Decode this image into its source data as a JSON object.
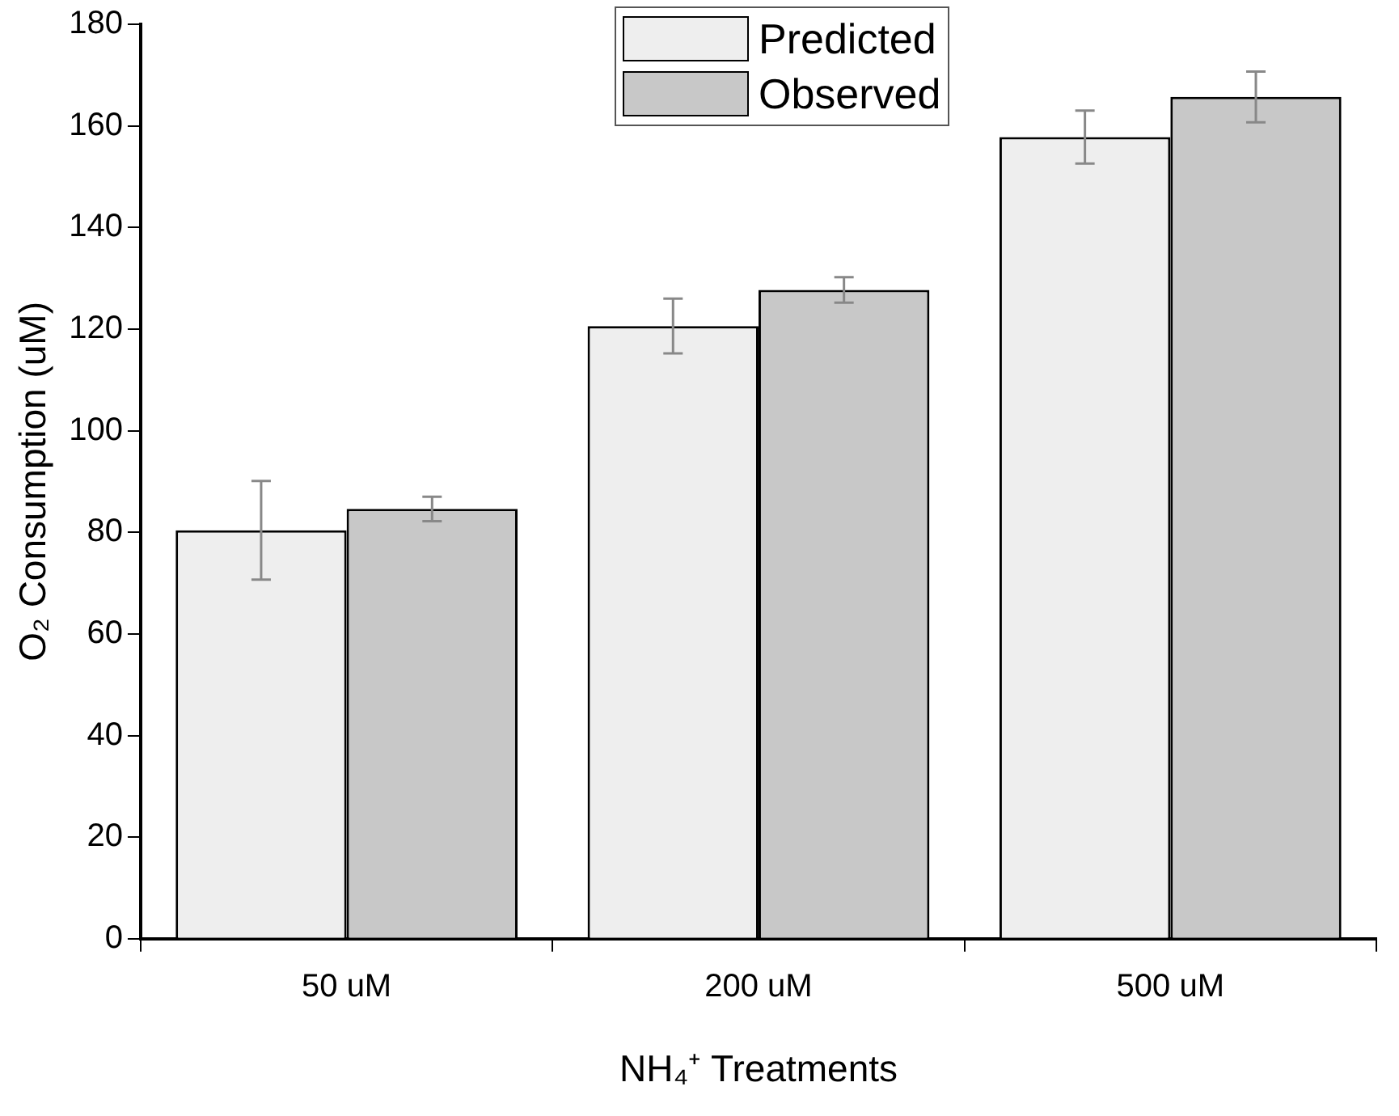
{
  "chart_data": {
    "type": "bar",
    "xlabel": "NH₄⁺ Treatments",
    "ylabel": "O₂ Consumption (uM)",
    "categories": [
      "50 uM",
      "200 uM",
      "500 uM"
    ],
    "series": [
      {
        "name": "Predicted",
        "color": "#eeeeee",
        "values": [
          80.4,
          120.6,
          157.8
        ],
        "errors": [
          9.7,
          5.4,
          5.2
        ]
      },
      {
        "name": "Observed",
        "color": "#c8c8c8",
        "values": [
          84.6,
          127.7,
          165.7
        ],
        "errors": [
          2.4,
          2.5,
          5
        ]
      }
    ],
    "ylim": [
      0,
      180
    ],
    "yticks": [
      0,
      20,
      40,
      60,
      80,
      100,
      120,
      140,
      160,
      180
    ],
    "grid": false,
    "legend": "top"
  }
}
